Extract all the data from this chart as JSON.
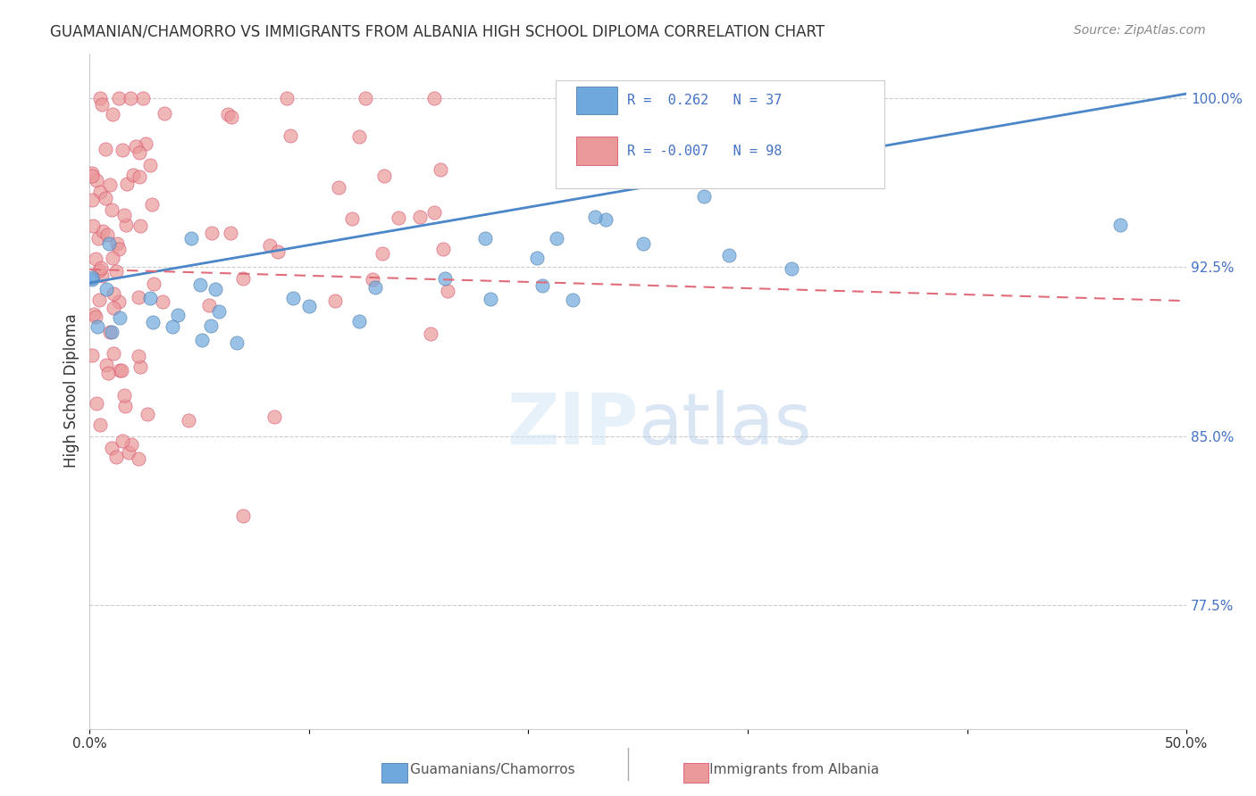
{
  "title": "GUAMANIAN/CHAMORRO VS IMMIGRANTS FROM ALBANIA HIGH SCHOOL DIPLOMA CORRELATION CHART",
  "source": "Source: ZipAtlas.com",
  "ylabel": "High School Diploma",
  "xlim": [
    0.0,
    0.5
  ],
  "ylim": [
    0.72,
    1.02
  ],
  "yticks": [
    0.775,
    0.85,
    0.925,
    1.0
  ],
  "ytick_labels": [
    "77.5%",
    "85.0%",
    "92.5%",
    "100.0%"
  ],
  "blue_color": "#6fa8dc",
  "pink_color": "#ea9999",
  "blue_edge": "#3a6fa0",
  "pink_edge": "#d44060",
  "blue_line_color": "#4a86c8",
  "pink_line_color": "#e06c7a",
  "legend_text_color": "#4472c4",
  "title_color": "#333333",
  "source_color": "#888888",
  "grid_color": "#cccccc",
  "blue_trend": [
    0.918,
    1.002
  ],
  "pink_trend": [
    0.924,
    0.91
  ]
}
